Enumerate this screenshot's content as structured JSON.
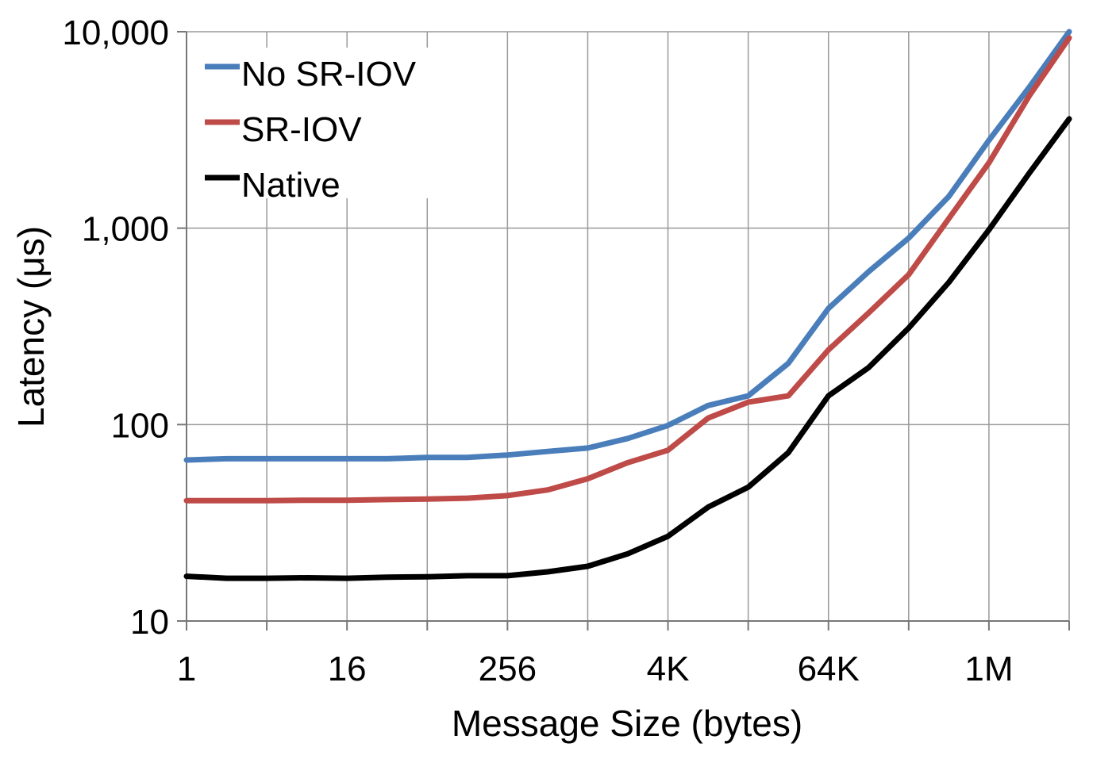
{
  "chart_data": {
    "type": "line",
    "title": "",
    "xlabel": "Message Size (bytes)",
    "ylabel": "Latency (μs)",
    "x_scale": "log2",
    "y_scale": "log10",
    "x_exponents": [
      0,
      1,
      2,
      3,
      4,
      5,
      6,
      7,
      8,
      9,
      10,
      11,
      12,
      13,
      14,
      15,
      16,
      17,
      18,
      19,
      20,
      21,
      22
    ],
    "xlim_log2": [
      0,
      22
    ],
    "ylim": [
      10,
      10000
    ],
    "x_ticks": [
      {
        "exp": 0,
        "label": "1"
      },
      {
        "exp": 4,
        "label": "16"
      },
      {
        "exp": 8,
        "label": "256"
      },
      {
        "exp": 12,
        "label": "4K"
      },
      {
        "exp": 16,
        "label": "64K"
      },
      {
        "exp": 20,
        "label": "1M"
      }
    ],
    "y_ticks": [
      {
        "value": 10,
        "label": "10"
      },
      {
        "value": 100,
        "label": "100"
      },
      {
        "value": 1000,
        "label": "1,000"
      },
      {
        "value": 10000,
        "label": "10,000"
      }
    ],
    "grid": true,
    "legend_position": "top-left",
    "series": [
      {
        "name": "No SR-IOV",
        "color": "#4a7ebb",
        "values": [
          66,
          67,
          67,
          67,
          67,
          67,
          68,
          68,
          70,
          73,
          76,
          85,
          99,
          125,
          140,
          205,
          390,
          600,
          890,
          1450,
          2800,
          5200,
          10000
        ]
      },
      {
        "name": "SR-IOV",
        "color": "#be4b48",
        "values": [
          41,
          41,
          41,
          41.2,
          41.2,
          41.5,
          41.8,
          42.2,
          43.5,
          46.5,
          53,
          64,
          74,
          108,
          130,
          140,
          240,
          370,
          580,
          1120,
          2150,
          4700,
          9300
        ]
      },
      {
        "name": "Native",
        "color": "#000000",
        "values": [
          16.9,
          16.5,
          16.5,
          16.6,
          16.5,
          16.7,
          16.8,
          17,
          17,
          17.8,
          19,
          22,
          27,
          38,
          48,
          72,
          140,
          195,
          310,
          530,
          980,
          1900,
          3600
        ]
      }
    ]
  }
}
